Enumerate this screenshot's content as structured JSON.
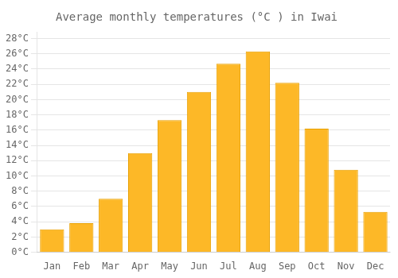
{
  "chart_data": {
    "type": "bar",
    "title": "Average monthly temperatures (°C ) in Iwai",
    "categories": [
      "Jan",
      "Feb",
      "Mar",
      "Apr",
      "May",
      "Jun",
      "Jul",
      "Aug",
      "Sep",
      "Oct",
      "Nov",
      "Dec"
    ],
    "values": [
      3.0,
      3.8,
      7.0,
      13.0,
      17.3,
      21.0,
      24.7,
      26.3,
      22.2,
      16.2,
      10.8,
      5.3
    ],
    "color": "#FDB827",
    "ylim": [
      0,
      28.8
    ],
    "yticks": [
      {
        "value": 0,
        "label": "0°C"
      },
      {
        "value": 2,
        "label": "2°C"
      },
      {
        "value": 4,
        "label": "4°C"
      },
      {
        "value": 6,
        "label": "6°C"
      },
      {
        "value": 8,
        "label": "8°C"
      },
      {
        "value": 10,
        "label": "10°C"
      },
      {
        "value": 12,
        "label": "12°C"
      },
      {
        "value": 14,
        "label": "14°C"
      },
      {
        "value": 16,
        "label": "16°C"
      },
      {
        "value": 18,
        "label": "18°C"
      },
      {
        "value": 20,
        "label": "20°C"
      },
      {
        "value": 22,
        "label": "22°C"
      },
      {
        "value": 24,
        "label": "24°C"
      },
      {
        "value": 26,
        "label": "26°C"
      },
      {
        "value": 28,
        "label": "28°C"
      }
    ],
    "grid": true
  }
}
